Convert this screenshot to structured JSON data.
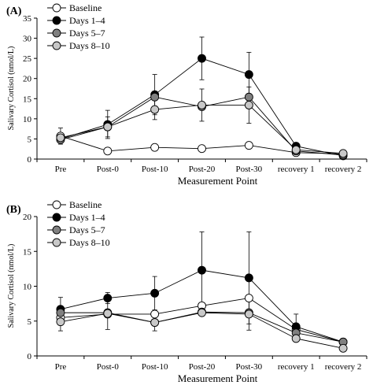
{
  "chart_data": [
    {
      "panel_label": "(A)",
      "type": "line",
      "xlabel": "Measurement Point",
      "ylabel": "Salivary Cortisol (nmol/L)",
      "categories": [
        "Pre",
        "Post-0",
        "Post-10",
        "Post-20",
        "Post-30",
        "recovery 1",
        "recovery 2"
      ],
      "ylim": [
        0,
        35
      ],
      "yticks": [
        "0",
        "5",
        "10",
        "15",
        "20",
        "25",
        "30",
        "35"
      ],
      "legend_position": "top-left",
      "series": [
        {
          "name": "Baseline",
          "marker": "#ffffff",
          "values": [
            5.7,
            2.0,
            2.9,
            2.6,
            3.4,
            1.6,
            1.3
          ],
          "err": [
            2.0,
            0,
            0,
            0,
            0,
            0,
            0
          ]
        },
        {
          "name": "Days 1–4",
          "marker": "#000000",
          "values": [
            5.0,
            8.6,
            16.0,
            25.0,
            21.0,
            3.2,
            0.8
          ],
          "err": [
            0,
            3.5,
            5.0,
            5.3,
            5.5,
            0.5,
            0
          ]
        },
        {
          "name": "Days 5–7",
          "marker": "#808080",
          "values": [
            4.8,
            8.0,
            15.4,
            13.0,
            15.4,
            2.0,
            1.0
          ],
          "err": [
            0,
            0,
            0,
            0,
            0,
            0,
            0
          ]
        },
        {
          "name": "Days 8–10",
          "marker": "#c8c8c8",
          "values": [
            5.3,
            8.0,
            12.3,
            13.4,
            13.4,
            2.3,
            1.4
          ],
          "err": [
            0,
            2.5,
            2.5,
            4.0,
            4.5,
            0,
            0
          ]
        }
      ]
    },
    {
      "panel_label": "(B)",
      "type": "line",
      "xlabel": "Measurement Point",
      "ylabel": "Salivary Cortisol (nmol/L)",
      "categories": [
        "Pre",
        "Post-0",
        "Post-10",
        "Post-20",
        "Post-30",
        "recovery 1",
        "recovery 2"
      ],
      "ylim": [
        0,
        20
      ],
      "yticks": [
        "0",
        "5",
        "10",
        "15",
        "20"
      ],
      "legend_position": "top-left",
      "series": [
        {
          "name": "Baseline",
          "marker": "#ffffff",
          "values": [
            5.5,
            6.0,
            6.0,
            7.2,
            8.3,
            3.8,
            2.0
          ],
          "err": [
            0,
            2.2,
            0,
            0,
            0,
            0,
            0
          ]
        },
        {
          "name": "Days 1–4",
          "marker": "#000000",
          "values": [
            6.7,
            8.3,
            9.0,
            12.3,
            11.2,
            4.2,
            2.0
          ],
          "err": [
            1.7,
            0.8,
            2.4,
            5.5,
            6.6,
            1.8,
            0
          ]
        },
        {
          "name": "Days 5–7",
          "marker": "#808080",
          "values": [
            6.2,
            6.2,
            4.8,
            6.3,
            6.2,
            3.3,
            2.0
          ],
          "err": [
            0,
            0,
            0,
            0,
            0,
            0,
            0
          ]
        },
        {
          "name": "Days 8–10",
          "marker": "#c8c8c8",
          "values": [
            4.9,
            6.1,
            4.8,
            6.2,
            6.0,
            2.5,
            1.1
          ],
          "err": [
            1.3,
            0,
            1.2,
            0,
            2.3,
            0,
            0
          ]
        }
      ]
    }
  ]
}
